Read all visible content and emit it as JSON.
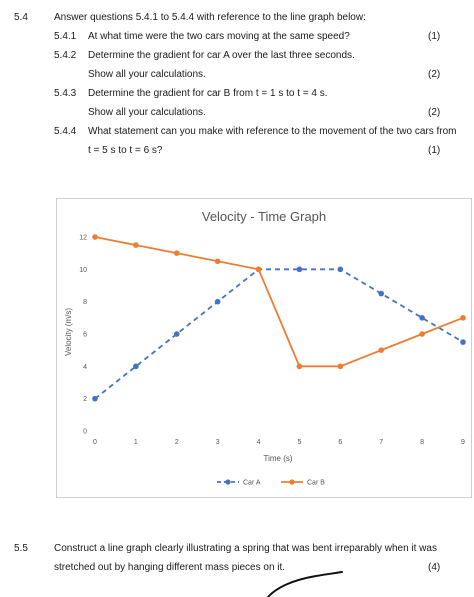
{
  "questions": [
    {
      "num": "5.4",
      "text": "Answer questions 5.4.1 to 5.4.4 with reference to the line graph below:"
    },
    {
      "num": "5.4.1",
      "text": "At what time were the two cars moving at the same speed?",
      "marks": "(1)"
    },
    {
      "num": "5.4.2",
      "text": "Determine the gradient for car A over the last three seconds."
    },
    {
      "text": "Show all your calculations.",
      "marks": "(2)"
    },
    {
      "num": "5.4.3",
      "text": "Determine the gradient for car B from t = 1 s to t = 4 s."
    },
    {
      "text": "Show all your calculations.",
      "marks": "(2)"
    },
    {
      "num": "5.4.4",
      "text": "What statement can you make with reference to the movement of the two cars from"
    },
    {
      "text": "t = 5 s to t = 6 s?",
      "marks": "(1)"
    }
  ],
  "q55": {
    "num": "5.5",
    "line1": "Construct a line graph clearly illustrating a spring that was bent irreparably when it was",
    "line2": "stretched out by hanging different mass pieces on it.",
    "marks": "(4)"
  },
  "chart_data": {
    "type": "line",
    "title": "Velocity - Time Graph",
    "xlabel": "Time (s)",
    "ylabel": "Velocity (m/s)",
    "x": [
      0,
      1,
      2,
      3,
      4,
      5,
      6,
      7,
      8,
      9
    ],
    "x_ticks": [
      "0",
      "1",
      "2",
      "3",
      "4",
      "5",
      "6",
      "7",
      "8",
      "9"
    ],
    "y_ticks": [
      "0",
      "2",
      "4",
      "6",
      "8",
      "10",
      "12"
    ],
    "xlim": [
      0,
      9
    ],
    "ylim": [
      0,
      12
    ],
    "grid": false,
    "legend_position": "bottom",
    "series": [
      {
        "name": "Car A",
        "values": [
          2,
          4,
          6,
          8,
          10,
          10,
          10,
          8.5,
          7,
          5.5
        ],
        "color": "#4472C4",
        "dashed": true
      },
      {
        "name": "Car B",
        "values": [
          12,
          11.5,
          11,
          10.5,
          10,
          4,
          4,
          5,
          6,
          7
        ],
        "color": "#ED7D31",
        "dashed": false
      }
    ]
  }
}
